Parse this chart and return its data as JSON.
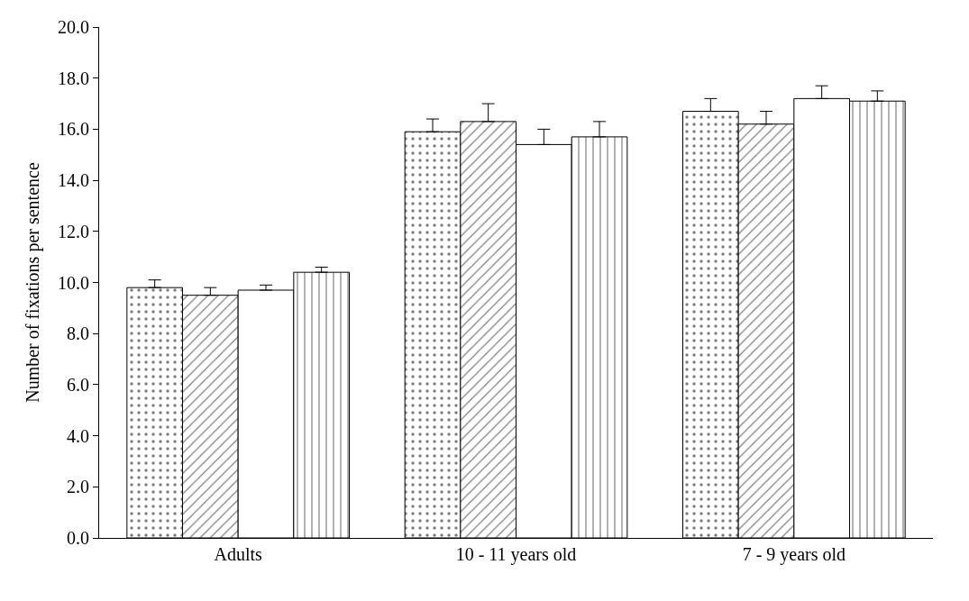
{
  "chart_data": {
    "type": "bar",
    "ylabel": "Number of fixations per sentence",
    "categories": [
      "Adults",
      "10 - 11 years old",
      "7 - 9 years old"
    ],
    "series": [
      {
        "color": "#000000",
        "values": [
          9.8,
          15.9,
          16.7
        ],
        "errors": [
          [
            9.8,
            10.1
          ],
          [
            15.9,
            16.4
          ],
          [
            16.7,
            17.2
          ]
        ]
      },
      {
        "color": "#000000",
        "values": [
          9.5,
          16.3,
          16.2
        ],
        "errors": [
          [
            9.5,
            9.8
          ],
          [
            16.3,
            17.0
          ],
          [
            16.2,
            16.7
          ]
        ]
      },
      {
        "color": "#ffffff",
        "values": [
          9.7,
          15.4,
          17.2
        ],
        "errors": [
          [
            9.7,
            9.9
          ],
          [
            15.4,
            16.0
          ],
          [
            17.2,
            17.7
          ]
        ]
      },
      {
        "color": "#000000",
        "values": [
          10.4,
          15.7,
          17.1
        ],
        "errors": [
          [
            10.4,
            10.6
          ],
          [
            15.7,
            16.3
          ],
          [
            17.1,
            17.5
          ]
        ]
      }
    ],
    "ylim": [
      0,
      20
    ],
    "yticks": [
      {
        "value": 0,
        "label": "0.0"
      },
      {
        "value": 2,
        "label": "2.0"
      },
      {
        "value": 4,
        "label": "4.0"
      },
      {
        "value": 6,
        "label": "6.0"
      },
      {
        "value": 8,
        "label": "8.0"
      },
      {
        "value": 10,
        "label": "10.0"
      },
      {
        "value": 12,
        "label": "12.0"
      },
      {
        "value": 14,
        "label": "14.0"
      },
      {
        "value": 16,
        "label": "16.0"
      },
      {
        "value": 18,
        "label": "18.0"
      },
      {
        "value": 20,
        "label": "20.0"
      }
    ],
    "grid": false
  }
}
